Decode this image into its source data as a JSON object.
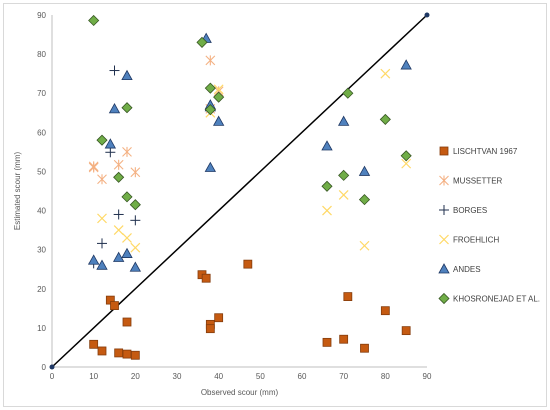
{
  "chart_data": {
    "type": "scatter",
    "xlabel": "Observed scour (mm)",
    "ylabel": "Estimated scour (mm)",
    "xlim": [
      0,
      90
    ],
    "ylim": [
      0,
      90
    ],
    "x_ticks": [
      0,
      10,
      20,
      30,
      40,
      50,
      60,
      70,
      80,
      90
    ],
    "y_ticks": [
      0,
      10,
      20,
      30,
      40,
      50,
      60,
      70,
      80,
      90
    ],
    "grid": "off",
    "legend_position": "right",
    "reference_line": {
      "from": [
        0,
        0
      ],
      "to": [
        90,
        90
      ],
      "color": "#000000"
    },
    "series": [
      {
        "name": "LISCHTVAN 1967",
        "marker": "square",
        "fill": "#c55a11",
        "stroke": "#843c0c",
        "points": [
          [
            10,
            5.8
          ],
          [
            12,
            4.1
          ],
          [
            14,
            17.1
          ],
          [
            15,
            15.7
          ],
          [
            16,
            3.6
          ],
          [
            18,
            11.5
          ],
          [
            18,
            3.3
          ],
          [
            20,
            3.0
          ],
          [
            36,
            23.6
          ],
          [
            37,
            22.7
          ],
          [
            38,
            10.9
          ],
          [
            38,
            9.8
          ],
          [
            40,
            12.6
          ],
          [
            47,
            26.3
          ],
          [
            66,
            6.3
          ],
          [
            70,
            7.1
          ],
          [
            71,
            18.0
          ],
          [
            75,
            4.8
          ],
          [
            80,
            14.4
          ],
          [
            85,
            9.3
          ]
        ]
      },
      {
        "name": "MUSSETTER",
        "marker": "asterisk",
        "stroke": "#f4b183",
        "points": [
          [
            10,
            51.3
          ],
          [
            10,
            51.0
          ],
          [
            12,
            48.0
          ],
          [
            16,
            51.7
          ],
          [
            18,
            55.0
          ],
          [
            20,
            49.8
          ],
          [
            38,
            78.4
          ],
          [
            40,
            70.5
          ],
          [
            38,
            66.0
          ]
        ]
      },
      {
        "name": "BORGES",
        "marker": "plus",
        "stroke": "#1f2f4d",
        "points": [
          [
            10,
            26.5
          ],
          [
            12,
            31.6
          ],
          [
            14,
            54.9
          ],
          [
            15,
            75.8
          ],
          [
            16,
            39.0
          ],
          [
            20,
            37.5
          ]
        ]
      },
      {
        "name": "FROEHLICH",
        "marker": "x",
        "stroke": "#ffd966",
        "points": [
          [
            12,
            38.0
          ],
          [
            16,
            35.0
          ],
          [
            18,
            33.0
          ],
          [
            20,
            30.5
          ],
          [
            38,
            65.0
          ],
          [
            40,
            71.0
          ],
          [
            66,
            40.0
          ],
          [
            70,
            44.0
          ],
          [
            75,
            31.0
          ],
          [
            80,
            75.0
          ],
          [
            85,
            52.0
          ]
        ]
      },
      {
        "name": "ANDES",
        "marker": "triangle",
        "fill": "#4f81bd",
        "stroke": "#1f3864",
        "points": [
          [
            10,
            27.3
          ],
          [
            12,
            26.0
          ],
          [
            14,
            57.0
          ],
          [
            15,
            66.0
          ],
          [
            16,
            28.0
          ],
          [
            18,
            74.5
          ],
          [
            18,
            29.0
          ],
          [
            20,
            25.5
          ],
          [
            37,
            84.0
          ],
          [
            38,
            51.0
          ],
          [
            38,
            66.5
          ],
          [
            38,
            67.0
          ],
          [
            40,
            62.8
          ],
          [
            66,
            56.5
          ],
          [
            70,
            62.8
          ],
          [
            75,
            50.0
          ],
          [
            85,
            77.2
          ]
        ]
      },
      {
        "name": "KHOSRONEJAD ET AL.",
        "marker": "diamond",
        "fill": "#70ad47",
        "stroke": "#375623",
        "points": [
          [
            10,
            88.6
          ],
          [
            12,
            58.0
          ],
          [
            16,
            48.5
          ],
          [
            18,
            66.3
          ],
          [
            18,
            43.5
          ],
          [
            20,
            41.5
          ],
          [
            36,
            83.0
          ],
          [
            38,
            71.3
          ],
          [
            38,
            65.8
          ],
          [
            40,
            69.0
          ],
          [
            66,
            46.2
          ],
          [
            70,
            49.0
          ],
          [
            71,
            70.0
          ],
          [
            75,
            42.8
          ],
          [
            80,
            63.3
          ],
          [
            85,
            54.0
          ]
        ]
      }
    ]
  }
}
